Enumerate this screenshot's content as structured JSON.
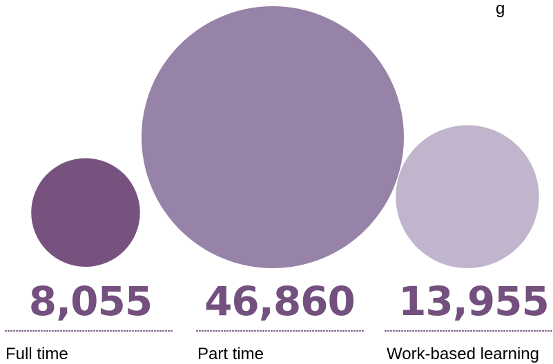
{
  "chart_data": {
    "type": "bubble",
    "categories": [
      "Full time",
      "Part time",
      "Work-based learning"
    ],
    "values": [
      8055,
      46860,
      13955
    ],
    "value_labels": [
      "8,055",
      "46,860",
      "13,955"
    ],
    "colors": [
      "#77527f",
      "#9782a8",
      "#c0b5cd"
    ],
    "label_color": "#74507f",
    "corner_fragment": "g"
  }
}
